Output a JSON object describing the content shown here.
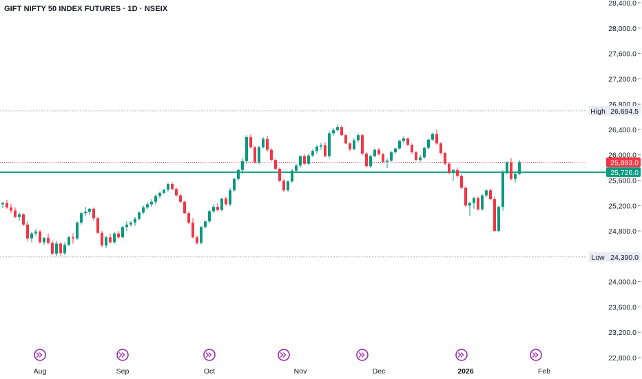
{
  "chart_data": {
    "type": "candlestick",
    "title": "GIFT NIFTY 50 INDEX FUTURES · 1D · NSEIX",
    "ylim": [
      22700,
      28450
    ],
    "y_ticks": [
      {
        "value": 28400,
        "label": "28,400.0"
      },
      {
        "value": 28000,
        "label": "28,000.0"
      },
      {
        "value": 27600,
        "label": "27,600.0"
      },
      {
        "value": 27200,
        "label": "27,200.0"
      },
      {
        "value": 26800,
        "label": "26,800.0"
      },
      {
        "value": 26400,
        "label": "26,400.0"
      },
      {
        "value": 26000,
        "label": "26,000.0"
      },
      {
        "value": 25600,
        "label": "25,600.0"
      },
      {
        "value": 25200,
        "label": "25,200.0"
      },
      {
        "value": 24800,
        "label": "24,800.0"
      },
      {
        "value": 24000,
        "label": "24,000.0"
      },
      {
        "value": 23600,
        "label": "23,600.0"
      },
      {
        "value": 23200,
        "label": "23,200.0"
      },
      {
        "value": 22800,
        "label": "22,800.0"
      }
    ],
    "x_ticks": [
      {
        "index": 9,
        "label": "Aug",
        "bold": false
      },
      {
        "index": 29,
        "label": "Sep",
        "bold": false
      },
      {
        "index": 50,
        "label": "Oct",
        "bold": false
      },
      {
        "index": 72,
        "label": "Nov",
        "bold": false
      },
      {
        "index": 91,
        "label": "Dec",
        "bold": false
      },
      {
        "index": 112,
        "label": "2026",
        "bold": true
      },
      {
        "index": 131,
        "label": "Feb",
        "bold": false
      }
    ],
    "event_markers": [
      9,
      29,
      50,
      68,
      87,
      111,
      129
    ],
    "markers": {
      "high": {
        "label": "High",
        "value": 26694.5,
        "text": "26,694.5"
      },
      "low": {
        "label": "Low",
        "value": 24390.0,
        "text": "24,390.0"
      },
      "last": {
        "value": 25883.0,
        "text": "25,883.0",
        "color": "#f23645"
      },
      "level": {
        "value": 25726.0,
        "text": "25,726.0",
        "color": "#089981"
      }
    },
    "colors": {
      "up": "#089981",
      "down": "#f23645"
    },
    "candles": [
      [
        25220,
        25260,
        25160,
        25240
      ],
      [
        25240,
        25290,
        25150,
        25170
      ],
      [
        25170,
        25230,
        25080,
        25120
      ],
      [
        25120,
        25170,
        25000,
        25020
      ],
      [
        25020,
        25090,
        24960,
        25060
      ],
      [
        25060,
        25080,
        24880,
        24900
      ],
      [
        24900,
        24950,
        24640,
        24680
      ],
      [
        24680,
        24780,
        24620,
        24760
      ],
      [
        24760,
        24830,
        24720,
        24790
      ],
      [
        24790,
        24810,
        24600,
        24620
      ],
      [
        24620,
        24700,
        24580,
        24690
      ],
      [
        24690,
        24760,
        24590,
        24610
      ],
      [
        24610,
        24650,
        24420,
        24440
      ],
      [
        24440,
        24640,
        24400,
        24600
      ],
      [
        24600,
        24620,
        24410,
        24450
      ],
      [
        24450,
        24620,
        24420,
        24580
      ],
      [
        24580,
        24720,
        24560,
        24700
      ],
      [
        24700,
        24760,
        24600,
        24680
      ],
      [
        24680,
        24950,
        24660,
        24930
      ],
      [
        24930,
        25100,
        24900,
        25080
      ],
      [
        25080,
        25180,
        25040,
        25100
      ],
      [
        25100,
        25160,
        25050,
        25150
      ],
      [
        25150,
        25170,
        24960,
        25000
      ],
      [
        25000,
        25020,
        24750,
        24770
      ],
      [
        24770,
        24800,
        24540,
        24570
      ],
      [
        24570,
        24720,
        24530,
        24700
      ],
      [
        24700,
        24760,
        24600,
        24620
      ],
      [
        24620,
        24780,
        24600,
        24760
      ],
      [
        24760,
        24800,
        24670,
        24700
      ],
      [
        24700,
        24880,
        24690,
        24860
      ],
      [
        24860,
        24950,
        24800,
        24900
      ],
      [
        24900,
        24960,
        24870,
        24930
      ],
      [
        24930,
        25020,
        24880,
        24990
      ],
      [
        24990,
        25110,
        24970,
        25090
      ],
      [
        25090,
        25200,
        25060,
        25170
      ],
      [
        25170,
        25250,
        25140,
        25220
      ],
      [
        25220,
        25300,
        25180,
        25260
      ],
      [
        25260,
        25380,
        25220,
        25350
      ],
      [
        25350,
        25420,
        25310,
        25400
      ],
      [
        25400,
        25460,
        25380,
        25450
      ],
      [
        25450,
        25560,
        25420,
        25540
      ],
      [
        25540,
        25570,
        25440,
        25460
      ],
      [
        25460,
        25480,
        25340,
        25360
      ],
      [
        25360,
        25390,
        25240,
        25260
      ],
      [
        25260,
        25280,
        25060,
        25080
      ],
      [
        25080,
        25110,
        24910,
        24930
      ],
      [
        24930,
        25000,
        24680,
        24700
      ],
      [
        24700,
        24730,
        24580,
        24610
      ],
      [
        24610,
        24880,
        24590,
        24860
      ],
      [
        24860,
        24960,
        24840,
        24950
      ],
      [
        24950,
        25130,
        24920,
        25110
      ],
      [
        25110,
        25220,
        25080,
        25180
      ],
      [
        25180,
        25240,
        25100,
        25130
      ],
      [
        25130,
        25320,
        25110,
        25310
      ],
      [
        25310,
        25340,
        25200,
        25220
      ],
      [
        25220,
        25480,
        25190,
        25440
      ],
      [
        25440,
        25640,
        25420,
        25620
      ],
      [
        25620,
        25780,
        25590,
        25760
      ],
      [
        25760,
        25950,
        25700,
        25900
      ],
      [
        25900,
        26310,
        25860,
        26280
      ],
      [
        26280,
        26320,
        26100,
        26120
      ],
      [
        26120,
        26140,
        25860,
        25880
      ],
      [
        25880,
        26140,
        25850,
        26120
      ],
      [
        26120,
        26280,
        26100,
        26250
      ],
      [
        26250,
        26300,
        26050,
        26080
      ],
      [
        26080,
        26100,
        25900,
        25920
      ],
      [
        25920,
        25940,
        25760,
        25780
      ],
      [
        25780,
        25800,
        25570,
        25590
      ],
      [
        25590,
        25620,
        25410,
        25440
      ],
      [
        25440,
        25600,
        25420,
        25580
      ],
      [
        25580,
        25780,
        25560,
        25750
      ],
      [
        25750,
        25860,
        25720,
        25830
      ],
      [
        25830,
        25990,
        25800,
        25980
      ],
      [
        25980,
        26010,
        25840,
        25860
      ],
      [
        25860,
        26020,
        25840,
        25990
      ],
      [
        25990,
        26090,
        25960,
        26060
      ],
      [
        26060,
        26160,
        26020,
        26130
      ],
      [
        26130,
        26190,
        26080,
        26150
      ],
      [
        26150,
        26200,
        25960,
        25980
      ],
      [
        25980,
        26370,
        25950,
        26340
      ],
      [
        26340,
        26420,
        26300,
        26390
      ],
      [
        26390,
        26480,
        26370,
        26440
      ],
      [
        26440,
        26460,
        26300,
        26310
      ],
      [
        26310,
        26330,
        26170,
        26180
      ],
      [
        26180,
        26200,
        26060,
        26090
      ],
      [
        26090,
        26260,
        26070,
        26230
      ],
      [
        26230,
        26340,
        26200,
        26310
      ],
      [
        26310,
        26330,
        26000,
        26020
      ],
      [
        26020,
        26040,
        25800,
        25820
      ],
      [
        25820,
        26000,
        25800,
        25980
      ],
      [
        25980,
        26100,
        25960,
        26080
      ],
      [
        26080,
        26110,
        25990,
        26010
      ],
      [
        26010,
        26030,
        25870,
        25890
      ],
      [
        25890,
        25940,
        25790,
        25910
      ],
      [
        25910,
        26060,
        25890,
        26040
      ],
      [
        26040,
        26110,
        26020,
        26100
      ],
      [
        26100,
        26240,
        26080,
        26220
      ],
      [
        26220,
        26290,
        26180,
        26260
      ],
      [
        26260,
        26270,
        26140,
        26160
      ],
      [
        26160,
        26180,
        26020,
        26040
      ],
      [
        26040,
        26060,
        25900,
        25920
      ],
      [
        25920,
        26000,
        25880,
        25960
      ],
      [
        25960,
        26130,
        25940,
        26110
      ],
      [
        26110,
        26260,
        26090,
        26240
      ],
      [
        26240,
        26350,
        26220,
        26330
      ],
      [
        26330,
        26400,
        26160,
        26180
      ],
      [
        26180,
        26200,
        26000,
        26030
      ],
      [
        26030,
        26050,
        25840,
        25860
      ],
      [
        25860,
        25880,
        25690,
        25720
      ],
      [
        25720,
        25780,
        25590,
        25760
      ],
      [
        25760,
        25800,
        25640,
        25670
      ],
      [
        25670,
        25700,
        25460,
        25480
      ],
      [
        25480,
        25500,
        25180,
        25200
      ],
      [
        25200,
        25260,
        25040,
        25240
      ],
      [
        25240,
        25340,
        25150,
        25320
      ],
      [
        25320,
        25350,
        25120,
        25140
      ],
      [
        25140,
        25380,
        25120,
        25360
      ],
      [
        25360,
        25450,
        25330,
        25440
      ],
      [
        25440,
        25470,
        25280,
        25300
      ],
      [
        25300,
        25340,
        24780,
        24800
      ],
      [
        24800,
        25200,
        24780,
        25180
      ],
      [
        25180,
        25760,
        25120,
        25720
      ],
      [
        25720,
        25900,
        25690,
        25880
      ],
      [
        25880,
        25950,
        25600,
        25620
      ],
      [
        25620,
        25720,
        25560,
        25700
      ],
      [
        25700,
        25920,
        25680,
        25883
      ]
    ]
  }
}
